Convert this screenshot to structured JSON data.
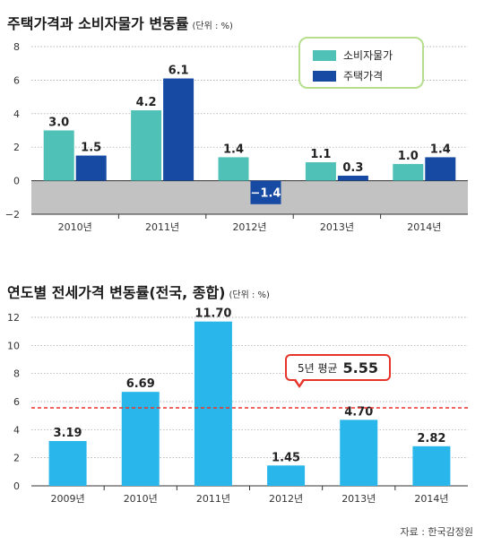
{
  "chart1": {
    "title": "주택가격과 소비자물가 변동률",
    "unit": "(단위 : %)",
    "legend": [
      "소비자물가",
      "주택가격"
    ]
  },
  "chart2": {
    "title": "연도별 전세가격 변동률(전국, 종합)",
    "unit": "(단위 : %)",
    "callout_label": "5년 평균",
    "callout_value": "5.55"
  },
  "source": "자료 : 한국감정원",
  "colors": {
    "cpi": "#4fc1b6",
    "housing": "#164aa3",
    "jeonse": "#29b6ea",
    "avg_line": "#e8332a",
    "neg_band": "#c2c2c2"
  },
  "chart_data": [
    {
      "type": "bar",
      "title": "주택가격과 소비자물가 변동률",
      "categories": [
        "2010년",
        "2011년",
        "2012년",
        "2013년",
        "2014년"
      ],
      "series": [
        {
          "name": "소비자물가",
          "values": [
            3.0,
            4.2,
            1.4,
            1.1,
            1.0
          ],
          "labels": [
            "3.0",
            "4.2",
            "1.4",
            "1.1",
            "1.0"
          ]
        },
        {
          "name": "주택가격",
          "values": [
            1.5,
            6.1,
            -1.4,
            0.3,
            1.4
          ],
          "labels": [
            "1.5",
            "6.1",
            "−1.4",
            "0.3",
            "1.4"
          ]
        }
      ],
      "yticks": [
        "8",
        "6",
        "4",
        "2",
        "0",
        "−2"
      ],
      "ylim": [
        -2,
        8
      ],
      "legend_position": "top-right",
      "grid": true
    },
    {
      "type": "bar",
      "title": "연도별 전세가격 변동률(전국, 종합)",
      "categories": [
        "2009년",
        "2010년",
        "2011년",
        "2012년",
        "2013년",
        "2014년"
      ],
      "values": [
        3.19,
        6.69,
        11.7,
        1.45,
        4.7,
        2.82
      ],
      "labels": [
        "3.19",
        "6.69",
        "11.70",
        "1.45",
        "4.70",
        "2.82"
      ],
      "yticks": [
        "12",
        "10",
        "8",
        "6",
        "4",
        "2",
        "0"
      ],
      "ylim": [
        0,
        12
      ],
      "average": 5.55,
      "grid": true
    }
  ]
}
